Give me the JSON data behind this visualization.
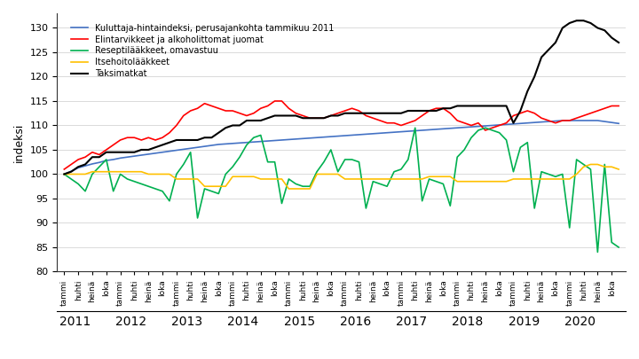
{
  "title_y": "indeksi",
  "ylim": [
    80,
    133
  ],
  "yticks": [
    80,
    85,
    90,
    95,
    100,
    105,
    110,
    115,
    120,
    125,
    130
  ],
  "legend": [
    "Kuluttaja-hintaindeksi, perusajankohta tammikuu 2011",
    "Elintarvikkeet ja alkoholittomat juomat",
    "Reseptilääkkeet, omavastuu",
    "Itsehoitolääkkeet",
    "Taksimatkat"
  ],
  "colors": [
    "#4472C4",
    "#FF0000",
    "#00B050",
    "#FFC000",
    "#000000"
  ],
  "blue": [
    100.0,
    100.6,
    101.3,
    101.7,
    102.1,
    102.4,
    102.8,
    103.0,
    103.3,
    103.5,
    103.7,
    103.9,
    104.1,
    104.3,
    104.5,
    104.7,
    104.9,
    105.1,
    105.3,
    105.5,
    105.7,
    105.9,
    106.1,
    106.2,
    106.3,
    106.4,
    106.5,
    106.6,
    106.7,
    106.8,
    106.9,
    107.0,
    107.1,
    107.2,
    107.3,
    107.4,
    107.5,
    107.6,
    107.7,
    107.8,
    107.9,
    108.0,
    108.1,
    108.2,
    108.3,
    108.4,
    108.5,
    108.6,
    108.7,
    108.8,
    108.9,
    109.0,
    109.1,
    109.2,
    109.3,
    109.4,
    109.5,
    109.6,
    109.7,
    109.8,
    109.9,
    110.0,
    110.1,
    110.2,
    110.3,
    110.4,
    110.5,
    110.6,
    110.7,
    110.8,
    110.9,
    111.0,
    111.0,
    111.0,
    111.0,
    111.0,
    111.0,
    110.8,
    110.6,
    110.4
  ],
  "red": [
    101.0,
    102.0,
    103.0,
    103.5,
    104.5,
    104.0,
    105.0,
    106.0,
    107.0,
    107.5,
    107.5,
    107.0,
    107.5,
    107.0,
    107.5,
    108.5,
    110.0,
    112.0,
    113.0,
    113.5,
    114.5,
    114.0,
    113.5,
    113.0,
    113.0,
    112.5,
    112.0,
    112.5,
    113.5,
    114.0,
    115.0,
    115.0,
    113.5,
    112.5,
    112.0,
    111.5,
    111.5,
    111.5,
    112.0,
    112.5,
    113.0,
    113.5,
    113.0,
    112.0,
    111.5,
    111.0,
    110.5,
    110.5,
    110.0,
    110.5,
    111.0,
    112.0,
    113.0,
    113.5,
    113.5,
    112.5,
    111.0,
    110.5,
    110.0,
    110.5,
    109.0,
    109.5,
    110.0,
    110.5,
    112.0,
    112.5,
    113.0,
    112.5,
    111.5,
    111.0,
    110.5,
    111.0,
    111.0,
    111.5,
    112.0,
    112.5,
    113.0,
    113.5,
    114.0,
    114.0
  ],
  "green": [
    100.0,
    99.0,
    98.0,
    96.5,
    100.0,
    101.5,
    103.0,
    96.5,
    100.0,
    99.0,
    98.5,
    98.0,
    97.5,
    97.0,
    96.5,
    94.5,
    100.0,
    102.0,
    104.5,
    91.0,
    97.0,
    96.5,
    96.0,
    100.0,
    101.5,
    103.5,
    106.0,
    107.5,
    108.0,
    102.5,
    102.5,
    94.0,
    99.0,
    98.0,
    97.5,
    97.5,
    100.5,
    102.5,
    105.0,
    100.5,
    103.0,
    103.0,
    102.5,
    93.0,
    98.5,
    98.0,
    97.5,
    100.5,
    101.0,
    103.0,
    109.5,
    94.5,
    99.0,
    98.5,
    98.0,
    93.5,
    103.5,
    105.0,
    107.5,
    109.0,
    109.5,
    109.0,
    108.5,
    107.0,
    100.5,
    105.5,
    106.5,
    93.0,
    100.5,
    100.0,
    99.5,
    100.0,
    89.0,
    103.0,
    102.0,
    101.0,
    84.0,
    102.0,
    86.0,
    85.0
  ],
  "yellow": [
    100.0,
    100.0,
    100.0,
    100.0,
    100.5,
    100.5,
    100.5,
    100.5,
    100.5,
    100.5,
    100.5,
    100.5,
    100.0,
    100.0,
    100.0,
    100.0,
    99.0,
    99.0,
    99.0,
    99.0,
    97.5,
    97.5,
    97.5,
    97.5,
    99.5,
    99.5,
    99.5,
    99.5,
    99.0,
    99.0,
    99.0,
    99.0,
    97.0,
    97.0,
    97.0,
    97.0,
    100.0,
    100.0,
    100.0,
    100.0,
    99.0,
    99.0,
    99.0,
    99.0,
    99.0,
    99.0,
    99.0,
    99.0,
    99.0,
    99.0,
    99.0,
    99.0,
    99.5,
    99.5,
    99.5,
    99.5,
    98.5,
    98.5,
    98.5,
    98.5,
    98.5,
    98.5,
    98.5,
    98.5,
    99.0,
    99.0,
    99.0,
    99.0,
    99.0,
    99.0,
    99.0,
    99.0,
    99.0,
    100.0,
    101.5,
    102.0,
    102.0,
    101.5,
    101.5,
    101.0
  ],
  "black": [
    100.0,
    100.5,
    101.5,
    102.0,
    103.5,
    103.5,
    104.5,
    104.5,
    104.5,
    104.5,
    104.5,
    105.0,
    105.0,
    105.5,
    106.0,
    106.5,
    107.0,
    107.0,
    107.0,
    107.0,
    107.5,
    107.5,
    108.5,
    109.5,
    110.0,
    110.0,
    111.0,
    111.0,
    111.0,
    111.5,
    112.0,
    112.0,
    112.0,
    112.0,
    111.5,
    111.5,
    111.5,
    111.5,
    112.0,
    112.0,
    112.5,
    112.5,
    112.5,
    112.5,
    112.5,
    112.5,
    112.5,
    112.5,
    112.5,
    113.0,
    113.0,
    113.0,
    113.0,
    113.0,
    113.5,
    113.5,
    114.0,
    114.0,
    114.0,
    114.0,
    114.0,
    114.0,
    114.0,
    114.0,
    110.5,
    113.0,
    117.0,
    120.0,
    124.0,
    125.5,
    127.0,
    130.0,
    131.0,
    131.5,
    131.5,
    131.0,
    130.0,
    129.5,
    128.0,
    127.0
  ],
  "bg_color": "#ffffff",
  "grid_color": "#cccccc",
  "months_per_year": 8,
  "quarter_labels": [
    "tammi",
    "huhti",
    "heinä",
    "loka"
  ],
  "n_years": 10,
  "start_year": 2011
}
